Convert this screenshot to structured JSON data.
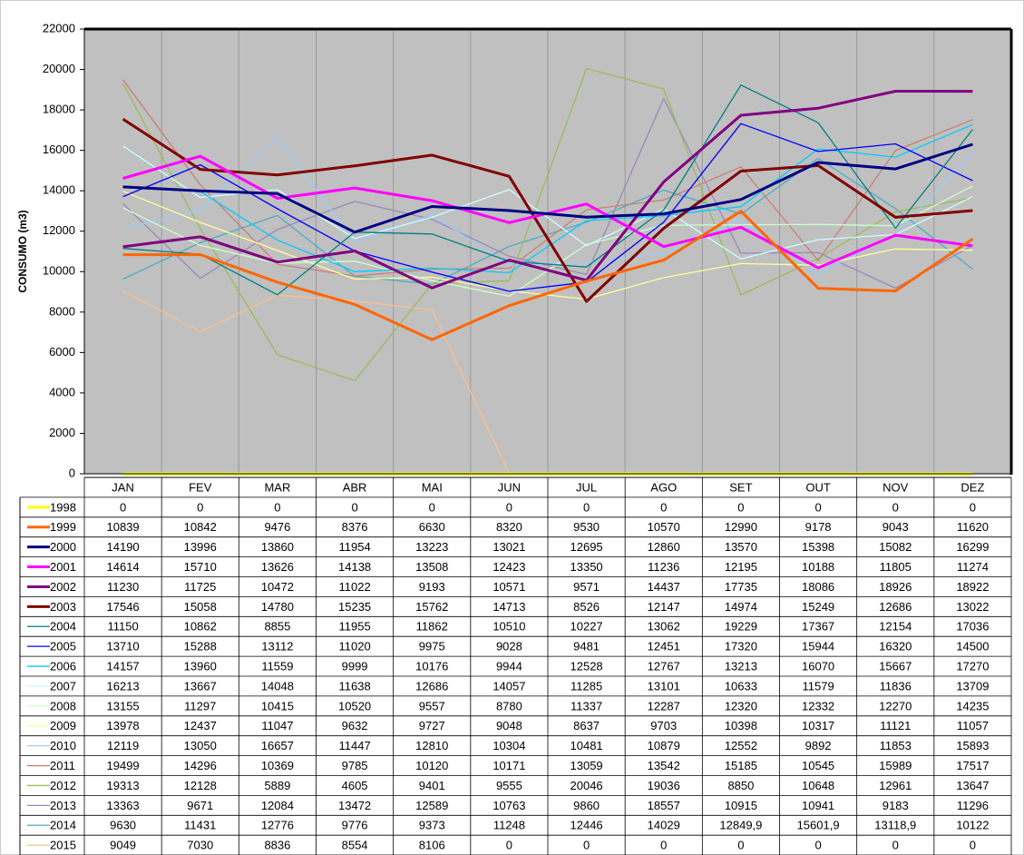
{
  "chart_data": {
    "type": "line",
    "y_label": "CONSUMO (m3)",
    "categories": [
      "JAN",
      "FEV",
      "MAR",
      "ABR",
      "MAI",
      "JUN",
      "JUL",
      "AGO",
      "SET",
      "OUT",
      "NOV",
      "DEZ"
    ],
    "ylim": [
      0,
      22000
    ],
    "yticks": [
      0,
      2000,
      4000,
      6000,
      8000,
      10000,
      12000,
      14000,
      16000,
      18000,
      20000,
      22000
    ],
    "grid": true,
    "series": [
      {
        "name": "1998",
        "color": "#ffff00",
        "values": [
          0,
          0,
          0,
          0,
          0,
          0,
          0,
          0,
          0,
          0,
          0,
          0
        ]
      },
      {
        "name": "1999",
        "color": "#ff6600",
        "values": [
          10839,
          10842,
          9476,
          8376,
          6630,
          8320,
          9530,
          10570,
          12990,
          9178,
          9043,
          11620
        ]
      },
      {
        "name": "2000",
        "color": "#000080",
        "values": [
          14190,
          13996,
          13860,
          11954,
          13223,
          13021,
          12695,
          12860,
          13570,
          15398,
          15082,
          16299
        ]
      },
      {
        "name": "2001",
        "color": "#ff00ff",
        "values": [
          14614,
          15710,
          13626,
          14138,
          13508,
          12423,
          13350,
          11236,
          12195,
          10188,
          11805,
          11274
        ]
      },
      {
        "name": "2002",
        "color": "#800080",
        "values": [
          11230,
          11725,
          10472,
          11022,
          9193,
          10571,
          9571,
          14437,
          17735,
          18086,
          18926,
          18922
        ]
      },
      {
        "name": "2003",
        "color": "#800000",
        "values": [
          17546,
          15058,
          14780,
          15235,
          15762,
          14713,
          8526,
          12147,
          14974,
          15249,
          12686,
          13022
        ]
      },
      {
        "name": "2004",
        "color": "#008080",
        "values": [
          11150,
          10862,
          8855,
          11955,
          11862,
          10510,
          10227,
          13062,
          19229,
          17367,
          12154,
          17036
        ]
      },
      {
        "name": "2005",
        "color": "#0000ff",
        "values": [
          13710,
          15288,
          13112,
          11020,
          9975,
          9028,
          9481,
          12451,
          17320,
          15944,
          16320,
          14500
        ]
      },
      {
        "name": "2006",
        "color": "#00ccff",
        "values": [
          14157,
          13960,
          11559,
          9999,
          10176,
          9944,
          12528,
          12767,
          13213,
          16070,
          15667,
          17270
        ]
      },
      {
        "name": "2007",
        "color": "#ccffff",
        "values": [
          16213,
          13667,
          14048,
          11638,
          12686,
          14057,
          11285,
          13101,
          10633,
          11579,
          11836,
          13709
        ]
      },
      {
        "name": "2008",
        "color": "#ccffcc",
        "values": [
          13155,
          11297,
          10415,
          10520,
          9557,
          8780,
          11337,
          12287,
          12320,
          12332,
          12270,
          14235
        ]
      },
      {
        "name": "2009",
        "color": "#ffff99",
        "values": [
          13978,
          12437,
          11047,
          9632,
          9727,
          9048,
          8637,
          9703,
          10398,
          10317,
          11121,
          11057
        ]
      },
      {
        "name": "2010",
        "color": "#99ccff",
        "values": [
          12119,
          13050,
          16657,
          11447,
          12810,
          10304,
          10481,
          10879,
          12552,
          9892,
          11853,
          15893
        ]
      },
      {
        "name": "2011",
        "color": "#c87f75",
        "values": [
          19499,
          14296,
          10369,
          9785,
          10120,
          10171,
          13059,
          13542,
          15185,
          10545,
          15989,
          17517
        ]
      },
      {
        "name": "2012",
        "color": "#9bbb59",
        "values": [
          19313,
          12128,
          5889,
          4605,
          9401,
          9555,
          20046,
          19036,
          8850,
          10648,
          12961,
          13647
        ]
      },
      {
        "name": "2013",
        "color": "#9988bb",
        "values": [
          13363,
          9671,
          12084,
          13472,
          12589,
          10763,
          9860,
          18557,
          10915,
          10941,
          9183,
          11296
        ]
      },
      {
        "name": "2014",
        "color": "#4bacc6",
        "values": [
          9630,
          11431,
          12776,
          9776,
          9373,
          11248,
          12446,
          14029,
          12849.9,
          15601.9,
          13118.9,
          10122
        ],
        "value_labels": [
          "9630",
          "11431",
          "12776",
          "9776",
          "9373",
          "11248",
          "12446",
          "14029",
          "12849,9",
          "15601,9",
          "13118,9",
          "10122"
        ]
      },
      {
        "name": "2015",
        "color": "#fabf8f",
        "values": [
          9049,
          7030,
          8836,
          8554,
          8106,
          0,
          0,
          0,
          0,
          0,
          0,
          0
        ]
      }
    ]
  }
}
